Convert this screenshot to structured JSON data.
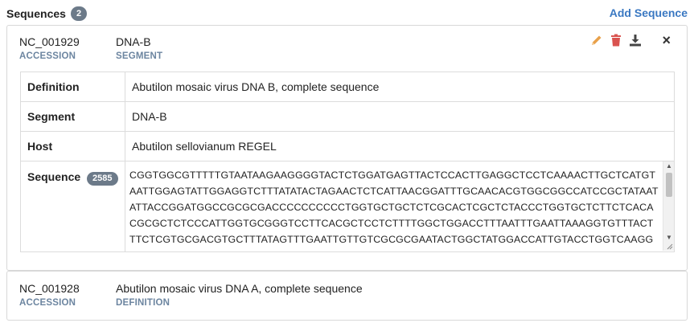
{
  "header": {
    "title": "Sequences",
    "count": "2",
    "add_label": "Add Sequence"
  },
  "sequences": [
    {
      "accession": "NC_001929",
      "accession_label": "ACCESSION",
      "segment": "DNA-B",
      "segment_label": "SEGMENT",
      "rows": {
        "definition_key": "Definition",
        "definition_val": "Abutilon mosaic virus DNA B, complete sequence",
        "segment_key": "Segment",
        "segment_val": "DNA-B",
        "host_key": "Host",
        "host_val": "Abutilon sellovianum REGEL",
        "sequence_key": "Sequence",
        "sequence_length": "2585",
        "sequence_val": "CGGTGGCGTTTTTGTAATAAGAAGGGGTACTCTGGATGAGTTACTCCACTTGAGGCTCCTCAAAACTTGCTCATGTAATTGGAGTATTGGAGGTCTTTATATACTAGAACTCTCATTAACGGATTTGCAACACGTGGCGGCCATCCGCTATAATATTACCGGATGGCCGCGCGACCCCCCCCCCTGGTGCTGCTCTCGCACTCGCTCTACCCTGGTGCTCTTCTCACACGCGCTCTCCCATTGGTGCGGGTCCTTCACGCTCCTCTTTTGGCTGGACCTTTAATTTGAATTAAAGGTGTTTACTTTCTCGTGCGACGTGCTTTATAGTTTGAATTGTTGTCGCGCGAATACTGGCTATGGACCATTGTACCTGGTCAAGGACGTGTCATAATCCAACGTGCTGTCATGTATTTGCCATTAATCGTCACCTGTAACTATATTTGGGGGCATACGTACGTTGG"
      },
      "actions": {
        "edit": "pencil-icon",
        "delete": "trash-icon",
        "download": "download-icon",
        "close": "×"
      },
      "colors": {
        "edit": "#e8a04a",
        "delete": "#d9534f",
        "download": "#444444"
      }
    },
    {
      "accession": "NC_001928",
      "accession_label": "ACCESSION",
      "definition": "Abutilon mosaic virus DNA A, complete sequence",
      "definition_label": "DEFINITION"
    }
  ]
}
